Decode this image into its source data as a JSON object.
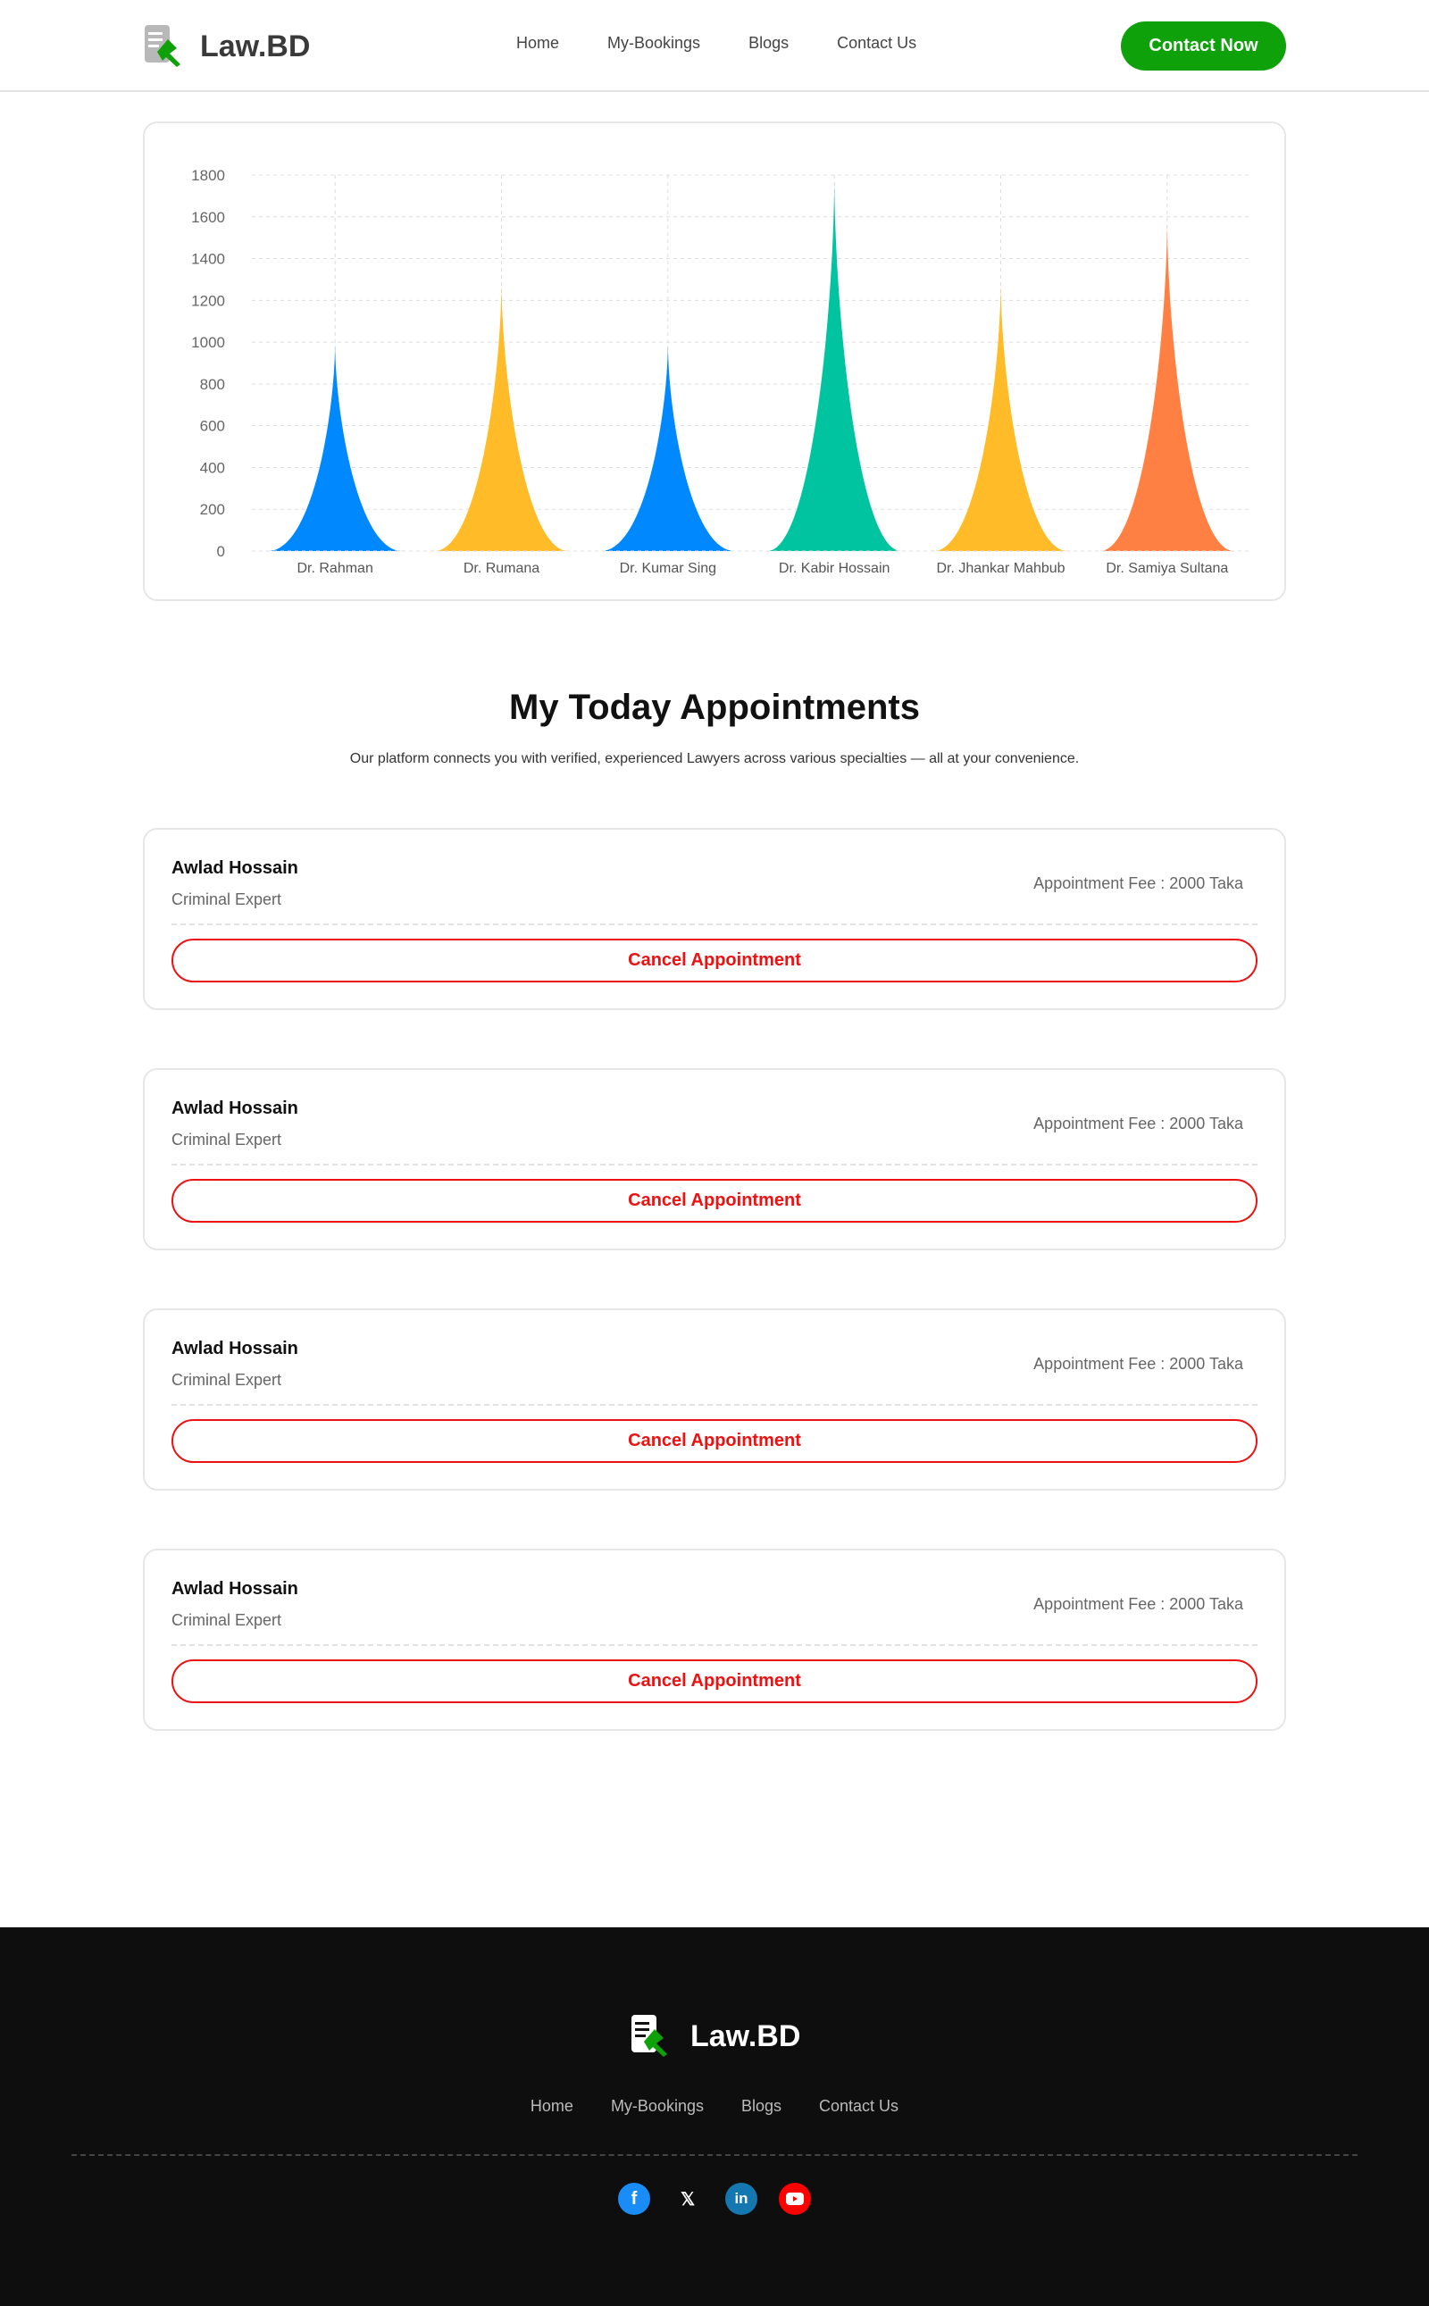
{
  "brand": {
    "name": "Law.BD"
  },
  "nav": [
    "Home",
    "My-Bookings",
    "Blogs",
    "Contact Us"
  ],
  "header": {
    "cta": "Contact Now"
  },
  "chart_data": {
    "type": "bar",
    "bar_shape": "triangle",
    "categories": [
      "Dr. Rahman",
      "Dr. Rumana",
      "Dr. Kumar Sing",
      "Dr. Kabir Hossain",
      "Dr. Jhankar Mahbub",
      "Dr. Samiya Sultana"
    ],
    "values": [
      1000,
      1300,
      1000,
      1800,
      1300,
      1600
    ],
    "colors": [
      "#0088FE",
      "#FFBB28",
      "#0088FE",
      "#00C49F",
      "#FFBB28",
      "#FF8042"
    ],
    "yticks": [
      0,
      200,
      400,
      600,
      800,
      1000,
      1200,
      1400,
      1600,
      1800
    ],
    "ylim": [
      0,
      1800
    ],
    "grid": true
  },
  "section": {
    "title": "My Today Appointments",
    "subtitle": "Our platform connects you with verified, experienced Lawyers across various specialties — all at your convenience."
  },
  "appointments": [
    {
      "name": "Awlad Hossain",
      "role": "Criminal Expert",
      "fee": "Appointment Fee :  2000 Taka",
      "action": "Cancel Appointment"
    },
    {
      "name": "Awlad Hossain",
      "role": "Criminal Expert",
      "fee": "Appointment Fee :  2000 Taka",
      "action": "Cancel Appointment"
    },
    {
      "name": "Awlad Hossain",
      "role": "Criminal Expert",
      "fee": "Appointment Fee :  2000 Taka",
      "action": "Cancel Appointment"
    },
    {
      "name": "Awlad Hossain",
      "role": "Criminal Expert",
      "fee": "Appointment Fee :  2000 Taka",
      "action": "Cancel Appointment"
    }
  ],
  "footer": {
    "social": [
      "facebook-icon",
      "x-icon",
      "linkedin-icon",
      "youtube-icon"
    ]
  }
}
